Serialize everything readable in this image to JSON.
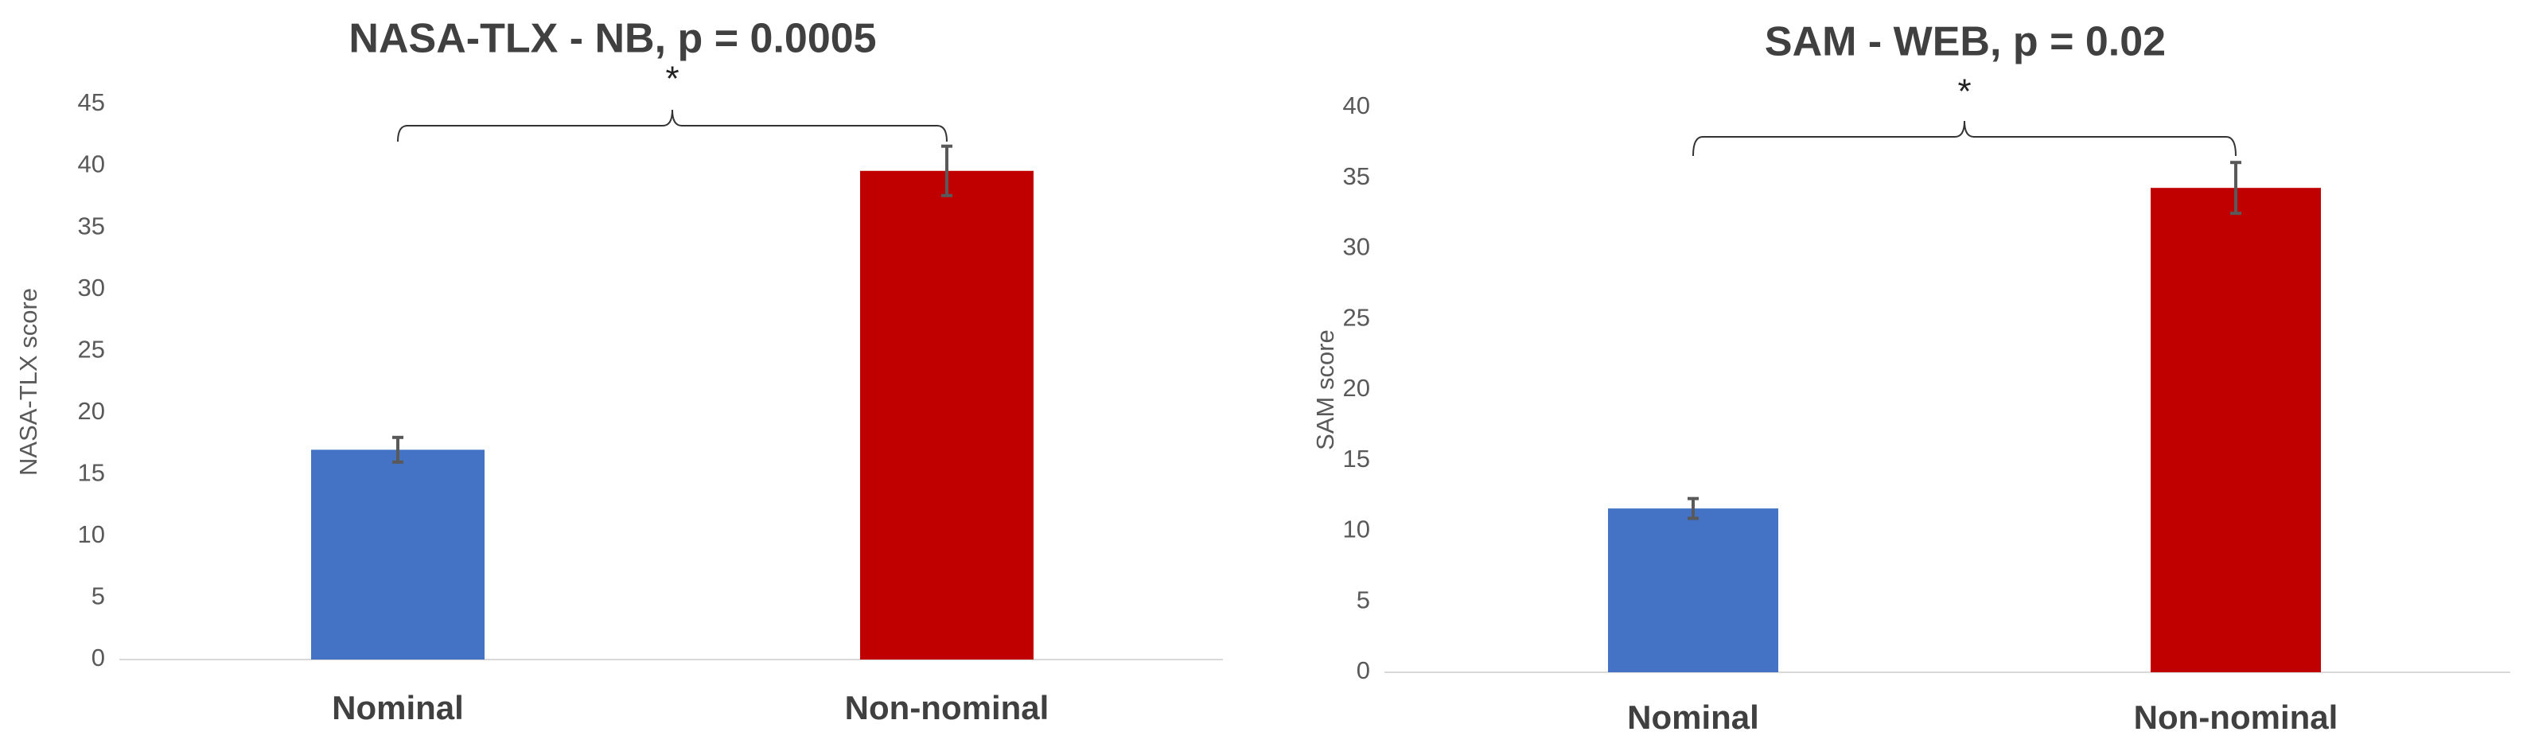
{
  "chart_data": [
    {
      "type": "bar",
      "title": "NASA-TLX - NB, p = 0.0005",
      "y_label": "NASA-TLX score",
      "categories": [
        "Nominal",
        "Non-nominal"
      ],
      "values": [
        17,
        39.6
      ],
      "errors": [
        1,
        2
      ],
      "colors": [
        "#4472c4",
        "#c00000"
      ],
      "ylim": [
        0,
        45
      ],
      "yticks": [
        0,
        5,
        10,
        15,
        20,
        25,
        30,
        35,
        40,
        45
      ],
      "grid": false,
      "annotation": "*"
    },
    {
      "type": "bar",
      "title": "SAM - WEB, p = 0.02",
      "y_label": "SAM score",
      "categories": [
        "Nominal",
        "Non-nominal"
      ],
      "values": [
        11.6,
        34.3
      ],
      "errors": [
        0.7,
        1.8
      ],
      "colors": [
        "#4472c4",
        "#c00000"
      ],
      "ylim": [
        0,
        40
      ],
      "yticks": [
        0,
        5,
        10,
        15,
        20,
        25,
        30,
        35,
        40
      ],
      "grid": false,
      "annotation": "*"
    }
  ]
}
